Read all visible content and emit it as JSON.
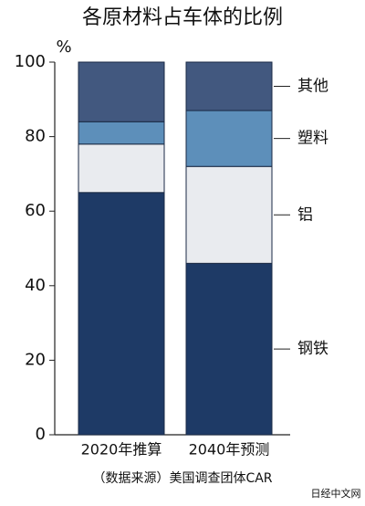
{
  "chart_data": {
    "type": "stacked_bar",
    "title": "各原材料占车体的比例",
    "y_unit": "%",
    "categories": [
      "2020年推算",
      "2040年预测"
    ],
    "series": [
      {
        "name": "钢铁",
        "color": "#1e3a66",
        "values": [
          65,
          46
        ]
      },
      {
        "name": "铝",
        "color": "#e9ebef",
        "values": [
          13,
          26
        ]
      },
      {
        "name": "塑料",
        "color": "#5d8fba",
        "values": [
          6,
          15
        ]
      },
      {
        "name": "其他",
        "color": "#42587f",
        "values": [
          16,
          13
        ]
      }
    ],
    "ylim": [
      0,
      100
    ],
    "yticks": [
      0,
      20,
      40,
      60,
      80,
      100
    ],
    "source": "（数据来源）美国调查团体CAR",
    "watermark": "日经中文网"
  }
}
